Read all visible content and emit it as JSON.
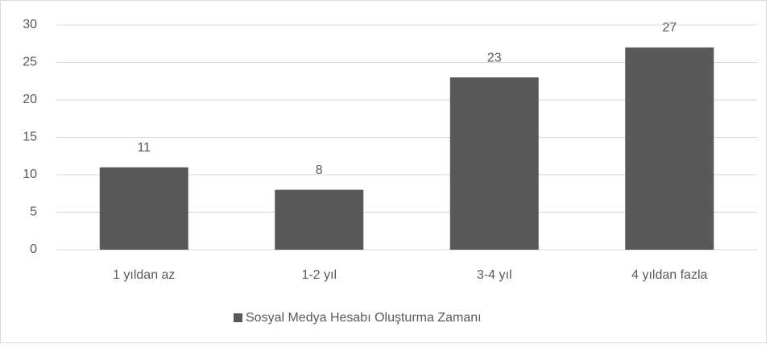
{
  "chart_data": {
    "type": "bar",
    "categories": [
      "1 yıldan az",
      "1-2 yıl",
      "3-4 yıl",
      "4 yıldan fazla"
    ],
    "series": [
      {
        "name": "Sosyal Medya Hesabı Oluşturma Zamanı",
        "color": "#595959",
        "values": [
          11,
          8,
          23,
          27
        ]
      }
    ],
    "ylim": [
      0,
      30
    ],
    "yticks": [
      0,
      5,
      10,
      15,
      20,
      25,
      30
    ],
    "grid": true,
    "legend": "bottom"
  }
}
